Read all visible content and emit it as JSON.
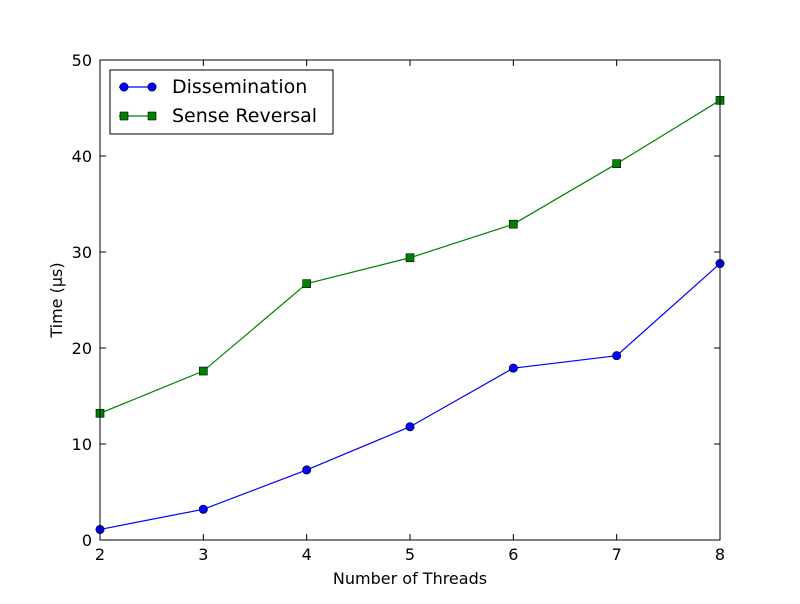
{
  "chart_data": {
    "type": "line",
    "title": "",
    "xlabel": "Number of Threads",
    "ylabel": "Time (μs)",
    "x": [
      2,
      3,
      4,
      5,
      6,
      7,
      8
    ],
    "xlim": [
      2,
      8
    ],
    "ylim": [
      0,
      50
    ],
    "xticks": [
      "2",
      "3",
      "4",
      "5",
      "6",
      "7",
      "8"
    ],
    "yticks": [
      "0",
      "10",
      "20",
      "30",
      "40",
      "50"
    ],
    "grid": false,
    "legend_position": "upper-left",
    "series": [
      {
        "name": "Dissemination",
        "marker": "circle",
        "color": "#0000ff",
        "values": [
          1.1,
          3.2,
          7.3,
          11.8,
          17.9,
          19.2,
          28.8
        ]
      },
      {
        "name": "Sense Reversal",
        "marker": "square",
        "color": "#008000",
        "values": [
          13.2,
          17.6,
          26.7,
          29.4,
          32.9,
          39.2,
          45.8
        ]
      }
    ]
  }
}
